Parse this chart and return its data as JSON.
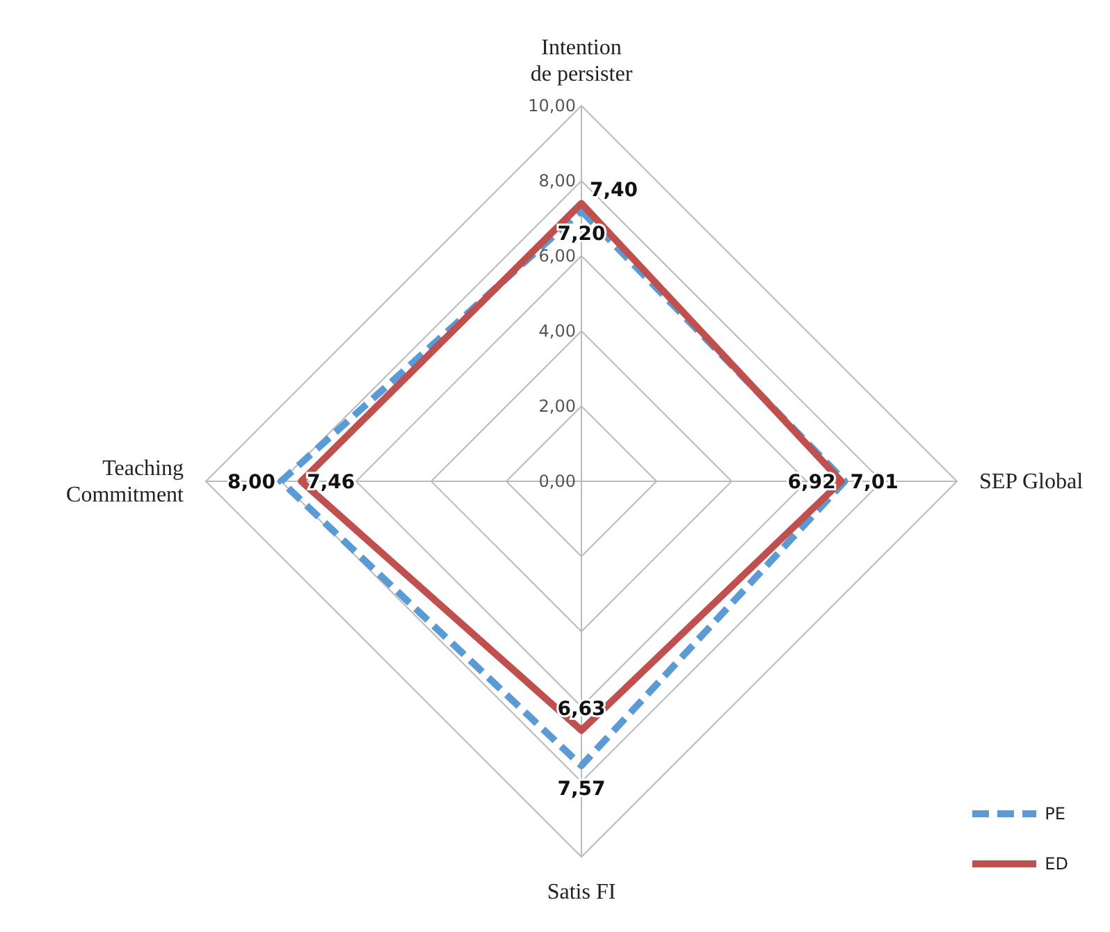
{
  "chart_data": {
    "type": "radar",
    "categories": [
      "Intention de persister",
      "SEP Global",
      "Satis FI",
      "Teaching Commitment"
    ],
    "series": [
      {
        "name": "PE",
        "color": "#5b9bd5",
        "line_style": "dashed",
        "values": [
          7.2,
          7.01,
          7.57,
          8.0
        ],
        "value_labels": [
          "7,20",
          "7,01",
          "7,57",
          "8,00"
        ]
      },
      {
        "name": "ED",
        "color": "#c0504d",
        "line_style": "solid",
        "values": [
          7.4,
          6.92,
          6.63,
          7.46
        ],
        "value_labels": [
          "7,40",
          "6,92",
          "6,63",
          "7,46"
        ]
      }
    ],
    "ylim": [
      0,
      10
    ],
    "yticks": [
      {
        "value": 0,
        "label": "0,00"
      },
      {
        "value": 2,
        "label": "2,00"
      },
      {
        "value": 4,
        "label": "4,00"
      },
      {
        "value": 6,
        "label": "6,00"
      },
      {
        "value": 8,
        "label": "8,00"
      },
      {
        "value": 10,
        "label": "10,00"
      }
    ],
    "grid": true,
    "legend": "bottom right",
    "marker": "none"
  }
}
